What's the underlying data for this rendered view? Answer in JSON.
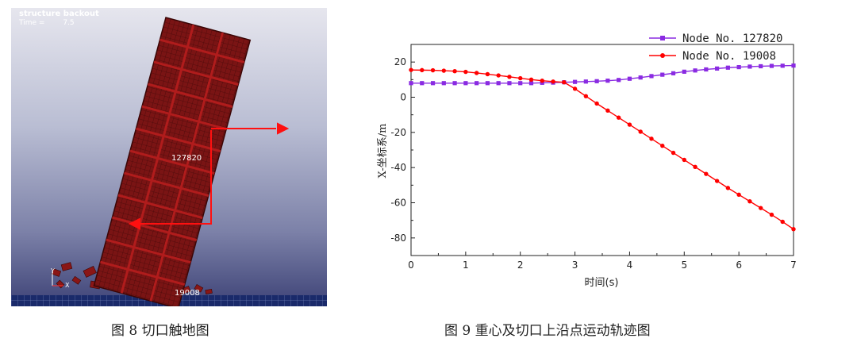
{
  "simulation": {
    "title": "structure backout",
    "time_label": "Time =",
    "time_value": "7.5",
    "node_label_center": "127820",
    "node_label_base": "19008",
    "axis_y": "Y",
    "axis_x": "X",
    "colors": {
      "structure": "#7a1414",
      "grid": "#4a0a0a",
      "arrow": "#ff1010",
      "ground": "#1a2a6a"
    }
  },
  "captions": {
    "left": "图 8  切口触地图",
    "right": "图 9  重心及切口上沿点运动轨迹图"
  },
  "chart_data": {
    "type": "line",
    "xlabel": "时间(s)",
    "ylabel": "X-坐标系/m",
    "xlim": [
      0,
      7
    ],
    "ylim": [
      -90,
      30
    ],
    "xticks": [
      0,
      1,
      2,
      3,
      4,
      5,
      6,
      7
    ],
    "yticks": [
      -80,
      -60,
      -40,
      -20,
      0,
      20
    ],
    "legend_position": "top-right",
    "grid": false,
    "series": [
      {
        "name": "Node No. 127820",
        "color": "#8a2be2",
        "marker": "square",
        "x": [
          0,
          0.2,
          0.4,
          0.6,
          0.8,
          1.0,
          1.2,
          1.4,
          1.6,
          1.8,
          2.0,
          2.2,
          2.4,
          2.6,
          2.8,
          3.0,
          3.2,
          3.4,
          3.6,
          3.8,
          4.0,
          4.2,
          4.4,
          4.6,
          4.8,
          5.0,
          5.2,
          5.4,
          5.6,
          5.8,
          6.0,
          6.2,
          6.4,
          6.6,
          6.8,
          7.0
        ],
        "values": [
          8,
          8,
          8,
          8,
          8,
          8,
          8,
          8,
          8,
          8,
          8,
          8,
          8.2,
          8.3,
          8.5,
          8.7,
          8.9,
          9.1,
          9.4,
          9.8,
          10.5,
          11.2,
          12,
          12.8,
          13.6,
          14.5,
          15.2,
          15.8,
          16.3,
          16.8,
          17.1,
          17.4,
          17.6,
          17.8,
          17.9,
          18
        ]
      },
      {
        "name": "Node No. 19008",
        "color": "#ff0000",
        "marker": "circle",
        "x": [
          0,
          0.2,
          0.4,
          0.6,
          0.8,
          1.0,
          1.2,
          1.4,
          1.6,
          1.8,
          2.0,
          2.2,
          2.4,
          2.6,
          2.8,
          3.0,
          3.2,
          3.4,
          3.6,
          3.8,
          4.0,
          4.2,
          4.4,
          4.6,
          4.8,
          5.0,
          5.2,
          5.4,
          5.6,
          5.8,
          6.0,
          6.2,
          6.4,
          6.6,
          6.8,
          7.0
        ],
        "values": [
          15.5,
          15.4,
          15.3,
          15.1,
          14.8,
          14.4,
          13.8,
          13.1,
          12.4,
          11.6,
          10.8,
          10,
          9.4,
          8.9,
          8.5,
          4.8,
          0.6,
          -3.6,
          -7.6,
          -11.6,
          -15.6,
          -19.6,
          -23.6,
          -27.6,
          -31.6,
          -35.6,
          -39.6,
          -43.6,
          -47.6,
          -51.6,
          -55.4,
          -59.2,
          -63,
          -66.8,
          -70.8,
          -75
        ]
      }
    ]
  }
}
